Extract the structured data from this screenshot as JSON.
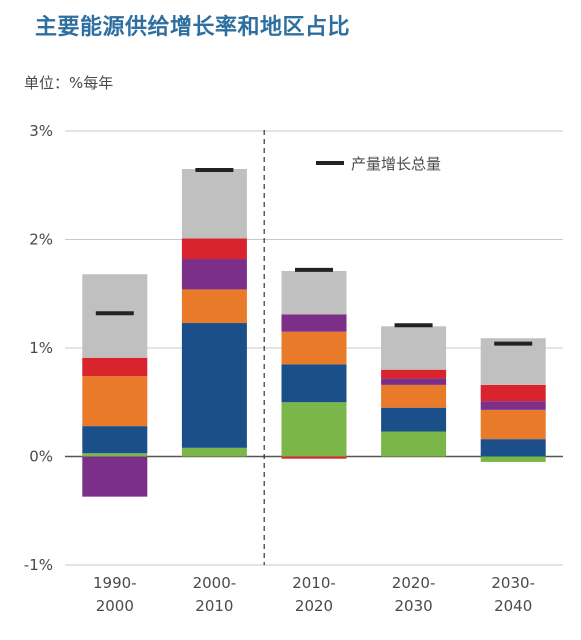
{
  "header": {
    "title": "主要能源供给增长率和地区占比",
    "unit": "单位：%每年"
  },
  "legend": {
    "total_label": "产量增长总量"
  },
  "chart_data": {
    "type": "bar",
    "stacked": true,
    "title": "主要能源供给增长率和地区占比",
    "ylabel": "单位：%每年",
    "xlabel": "",
    "ylim": [
      -1,
      3
    ],
    "yticks": [
      {
        "value": 3,
        "label": "3%"
      },
      {
        "value": 2,
        "label": "2%"
      },
      {
        "value": 1,
        "label": "1%"
      },
      {
        "value": 0,
        "label": "0%"
      },
      {
        "value": -1,
        "label": "-1%"
      }
    ],
    "categories": [
      [
        "1990-",
        "2000"
      ],
      [
        "2000-",
        "2010"
      ],
      [
        "2010-",
        "2020"
      ],
      [
        "2020-",
        "2030"
      ],
      [
        "2030-",
        "2040"
      ]
    ],
    "divider_after_index": 1,
    "series": [
      {
        "color": "#7ab648",
        "values": [
          0.03,
          0.08,
          0.5,
          0.23,
          -0.05
        ]
      },
      {
        "color": "#1a4f8a",
        "values": [
          0.25,
          1.15,
          0.35,
          0.22,
          0.16
        ]
      },
      {
        "color": "#e87a2a",
        "values": [
          0.46,
          0.31,
          0.3,
          0.21,
          0.27
        ]
      },
      {
        "color": "#7b2f88",
        "values": [
          -0.37,
          0.28,
          0.16,
          0.06,
          0.08
        ]
      },
      {
        "color": "#d9232d",
        "values": [
          0.17,
          0.19,
          -0.02,
          0.08,
          0.15
        ]
      },
      {
        "color": "#c0c0c0",
        "values": [
          0.77,
          0.64,
          0.4,
          0.4,
          0.43
        ]
      }
    ],
    "totals": [
      1.32,
      2.64,
      1.72,
      1.21,
      1.04
    ],
    "legend_position": "top-right",
    "grid": true
  }
}
